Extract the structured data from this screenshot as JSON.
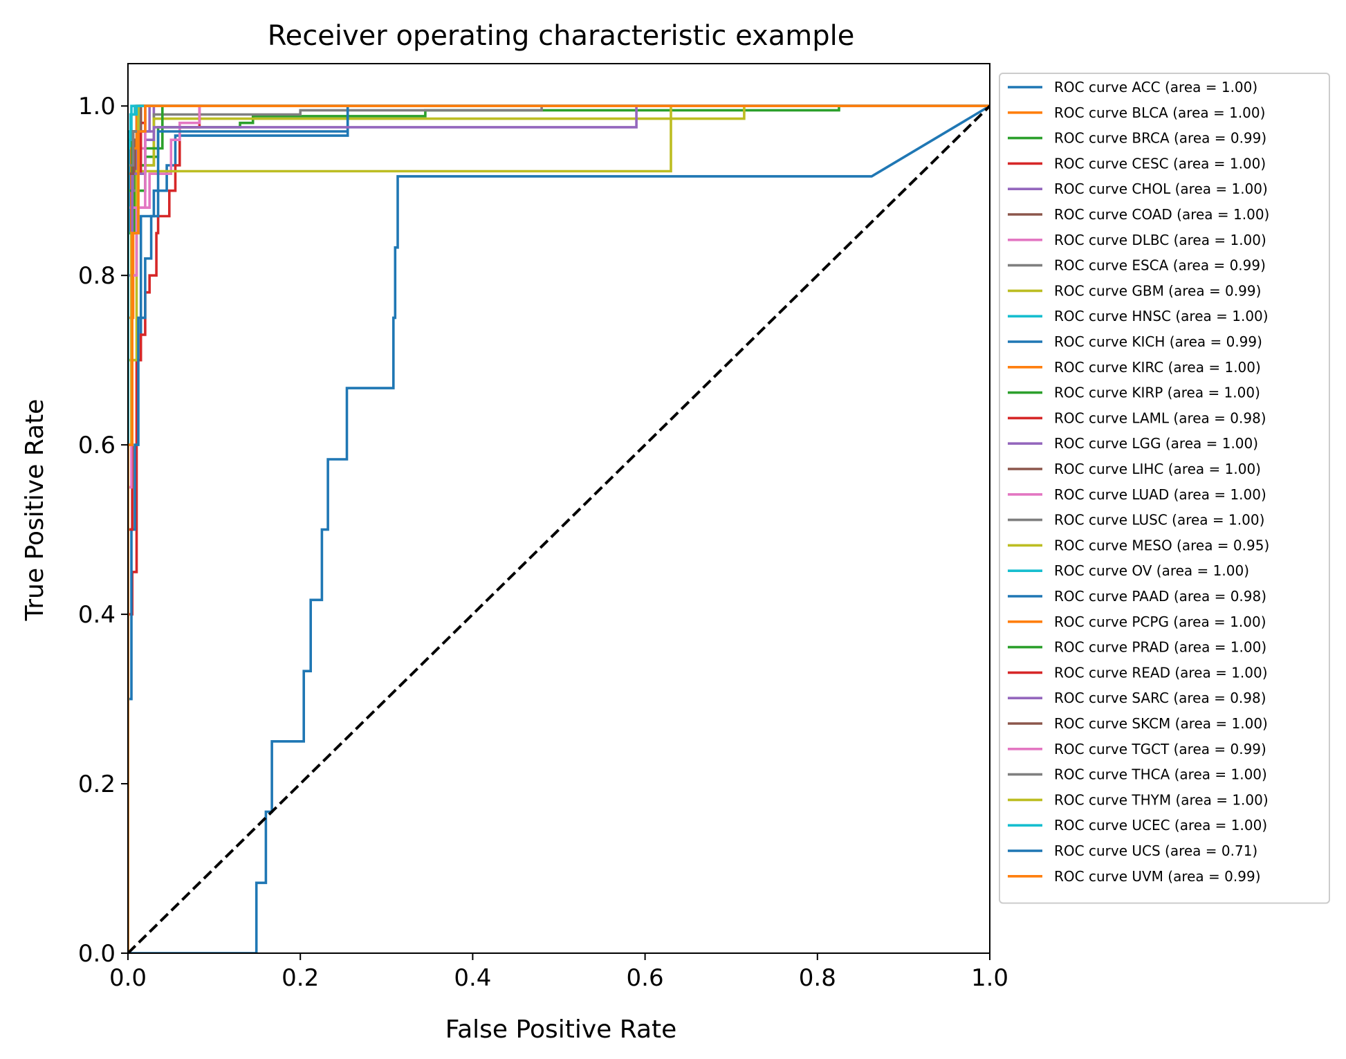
{
  "chart_data": {
    "type": "line",
    "title": "Receiver operating characteristic example",
    "xlabel": "False Positive Rate",
    "ylabel": "True Positive Rate",
    "xlim": [
      0.0,
      1.0
    ],
    "ylim": [
      0.0,
      1.05
    ],
    "x_ticks": [
      "0.0",
      "0.2",
      "0.4",
      "0.6",
      "0.8",
      "1.0"
    ],
    "y_ticks": [
      "0.0",
      "0.2",
      "0.4",
      "0.6",
      "0.8",
      "1.0"
    ],
    "grid": false,
    "legend_position": "outside right",
    "reference_line": {
      "x": [
        0,
        1
      ],
      "y": [
        0,
        1
      ],
      "color": "#000000",
      "style": "dashed"
    },
    "series": [
      {
        "name": "ROC curve ACC (area = 1.00)",
        "color": "#1f77b4",
        "x": [
          0,
          0,
          0.003,
          0.003,
          0.01,
          0.01,
          1
        ],
        "y": [
          0,
          0.85,
          0.85,
          0.97,
          0.97,
          1,
          1
        ]
      },
      {
        "name": "ROC curve BLCA (area = 1.00)",
        "color": "#ff7f0e",
        "x": [
          0,
          0,
          0.005,
          0.005,
          0.012,
          0.012,
          1
        ],
        "y": [
          0,
          0.7,
          0.7,
          0.9,
          0.9,
          1,
          1
        ]
      },
      {
        "name": "ROC curve BRCA (area = 0.99)",
        "color": "#2ca02c",
        "x": [
          0,
          0,
          0.01,
          0.01,
          0.02,
          0.02,
          0.035,
          0.035,
          0.13,
          0.13,
          0.145,
          0.145,
          0.345,
          0.345,
          0.825,
          0.825,
          1
        ],
        "y": [
          0,
          0.8,
          0.8,
          0.9,
          0.9,
          0.94,
          0.94,
          0.975,
          0.975,
          0.98,
          0.98,
          0.988,
          0.988,
          0.995,
          0.995,
          1,
          1
        ]
      },
      {
        "name": "ROC curve CESC (area = 1.00)",
        "color": "#d62728",
        "x": [
          0,
          0,
          0.004,
          0.004,
          0.012,
          0.012,
          0.02,
          0.02,
          1
        ],
        "y": [
          0,
          0.85,
          0.85,
          0.95,
          0.95,
          0.98,
          0.98,
          1,
          1
        ]
      },
      {
        "name": "ROC curve CHOL (area = 1.00)",
        "color": "#9467bd",
        "x": [
          0,
          0,
          0.005,
          0.005,
          0.03,
          0.03,
          1
        ],
        "y": [
          0,
          0.88,
          0.88,
          0.97,
          0.97,
          1,
          1
        ]
      },
      {
        "name": "ROC curve COAD (area = 1.00)",
        "color": "#8c564b",
        "x": [
          0,
          0,
          0.006,
          0.006,
          0.012,
          0.012,
          1
        ],
        "y": [
          0,
          0.9,
          0.9,
          0.96,
          0.96,
          1,
          1
        ]
      },
      {
        "name": "ROC curve DLBC (area = 1.00)",
        "color": "#e377c2",
        "x": [
          0,
          0,
          0.004,
          0.004,
          0.01,
          0.01,
          0.02,
          0.02,
          1
        ],
        "y": [
          0,
          0.6,
          0.6,
          0.85,
          0.85,
          0.95,
          0.95,
          1,
          1
        ]
      },
      {
        "name": "ROC curve ESCA (area = 0.99)",
        "color": "#7f7f7f",
        "x": [
          0,
          0,
          0.01,
          0.01,
          0.03,
          0.03,
          0.2,
          0.2,
          0.48,
          0.48,
          1
        ],
        "y": [
          0,
          0.85,
          0.85,
          0.93,
          0.93,
          0.99,
          0.99,
          0.995,
          0.995,
          1,
          1
        ]
      },
      {
        "name": "ROC curve GBM (area = 0.99)",
        "color": "#bcbd22",
        "x": [
          0,
          0,
          0.01,
          0.01,
          0.03,
          0.03,
          0.715,
          0.715,
          1
        ],
        "y": [
          0,
          0.8,
          0.8,
          0.93,
          0.93,
          0.985,
          0.985,
          1,
          1
        ]
      },
      {
        "name": "ROC curve HNSC (area = 1.00)",
        "color": "#17becf",
        "x": [
          0,
          0,
          0.003,
          0.003,
          0.008,
          0.008,
          1
        ],
        "y": [
          0,
          0.95,
          0.95,
          0.99,
          0.99,
          1,
          1
        ]
      },
      {
        "name": "ROC curve KICH (area = 0.99)",
        "color": "#1f77b4",
        "x": [
          0,
          0,
          0.005,
          0.005,
          0.015,
          0.015,
          0.03,
          0.03,
          0.045,
          0.045,
          0.055,
          0.055,
          0.255,
          0.255,
          1
        ],
        "y": [
          0,
          0.5,
          0.5,
          0.7,
          0.7,
          0.87,
          0.87,
          0.9,
          0.9,
          0.93,
          0.93,
          0.965,
          0.965,
          1,
          1
        ]
      },
      {
        "name": "ROC curve KIRC (area = 1.00)",
        "color": "#ff7f0e",
        "x": [
          0,
          0,
          0.006,
          0.006,
          0.015,
          0.015,
          1
        ],
        "y": [
          0,
          0.75,
          0.75,
          0.92,
          0.92,
          1,
          1
        ]
      },
      {
        "name": "ROC curve KIRP (area = 1.00)",
        "color": "#2ca02c",
        "x": [
          0,
          0,
          0.008,
          0.008,
          0.02,
          0.02,
          0.04,
          0.04,
          1
        ],
        "y": [
          0,
          0.85,
          0.85,
          0.93,
          0.93,
          0.95,
          0.95,
          1,
          1
        ]
      },
      {
        "name": "ROC curve LAML (area = 0.98)",
        "color": "#d62728",
        "x": [
          0,
          0,
          0.005,
          0.005,
          0.01,
          0.01,
          0.015,
          0.015,
          0.02,
          0.02,
          0.025,
          0.025,
          0.033,
          0.033,
          0.035,
          0.035,
          0.048,
          0.048,
          0.055,
          0.055,
          0.06,
          0.06,
          0.083,
          0.083,
          1
        ],
        "y": [
          0,
          0.4,
          0.4,
          0.45,
          0.45,
          0.7,
          0.7,
          0.73,
          0.73,
          0.78,
          0.78,
          0.8,
          0.8,
          0.85,
          0.85,
          0.87,
          0.87,
          0.9,
          0.9,
          0.93,
          0.93,
          0.975,
          0.975,
          1,
          1
        ]
      },
      {
        "name": "ROC curve LGG (area = 1.00)",
        "color": "#9467bd",
        "x": [
          0,
          0,
          0.01,
          0.01,
          0.025,
          0.025,
          1
        ],
        "y": [
          0,
          0.9,
          0.9,
          0.97,
          0.97,
          1,
          1
        ]
      },
      {
        "name": "ROC curve LIHC (area = 1.00)",
        "color": "#8c564b",
        "x": [
          0,
          0,
          0.008,
          0.008,
          0.015,
          0.015,
          1
        ],
        "y": [
          0,
          0.92,
          0.92,
          0.96,
          0.96,
          1,
          1
        ]
      },
      {
        "name": "ROC curve LUAD (area = 1.00)",
        "color": "#e377c2",
        "x": [
          0,
          0,
          0.005,
          0.005,
          0.025,
          0.025,
          0.05,
          0.05,
          0.06,
          0.06,
          0.083,
          0.083,
          1
        ],
        "y": [
          0,
          0.55,
          0.55,
          0.88,
          0.88,
          0.92,
          0.92,
          0.96,
          0.96,
          0.98,
          0.98,
          1,
          1
        ]
      },
      {
        "name": "ROC curve LUSC (area = 1.00)",
        "color": "#7f7f7f",
        "x": [
          0,
          0,
          0.006,
          0.006,
          0.02,
          0.02,
          1
        ],
        "y": [
          0,
          0.9,
          0.9,
          0.97,
          0.97,
          1,
          1
        ]
      },
      {
        "name": "ROC curve MESO (area = 0.95)",
        "color": "#bcbd22",
        "x": [
          0,
          0,
          0.01,
          0.01,
          0.63,
          0.63,
          1
        ],
        "y": [
          0,
          0.7,
          0.7,
          0.923,
          0.923,
          1,
          1
        ]
      },
      {
        "name": "ROC curve OV (area = 1.00)",
        "color": "#17becf",
        "x": [
          0,
          0,
          0.004,
          0.004,
          0.052,
          0.052,
          1
        ],
        "y": [
          0,
          0.97,
          0.97,
          1,
          1,
          1,
          1
        ]
      },
      {
        "name": "ROC curve PAAD (area = 0.98)",
        "color": "#1f77b4",
        "x": [
          0,
          0,
          0.004,
          0.004,
          0.008,
          0.008,
          0.012,
          0.012,
          0.02,
          0.02,
          0.027,
          0.027,
          0.035,
          0.035,
          0.255,
          0.255,
          1
        ],
        "y": [
          0,
          0.3,
          0.3,
          0.5,
          0.5,
          0.6,
          0.6,
          0.75,
          0.75,
          0.82,
          0.82,
          0.87,
          0.87,
          0.97,
          0.97,
          1,
          1
        ]
      },
      {
        "name": "ROC curve PCPG (area = 1.00)",
        "color": "#ff7f0e",
        "x": [
          0,
          0,
          0.004,
          0.004,
          0.01,
          0.01,
          1
        ],
        "y": [
          0,
          0.6,
          0.6,
          0.95,
          0.95,
          1,
          1
        ]
      },
      {
        "name": "ROC curve PRAD (area = 1.00)",
        "color": "#2ca02c",
        "x": [
          0,
          0,
          0.005,
          0.005,
          0.015,
          0.015,
          1
        ],
        "y": [
          0,
          0.9,
          0.9,
          0.97,
          0.97,
          1,
          1
        ]
      },
      {
        "name": "ROC curve READ (area = 1.00)",
        "color": "#d62728",
        "x": [
          0,
          0,
          0.005,
          0.005,
          0.015,
          0.015,
          1
        ],
        "y": [
          0,
          0.5,
          0.5,
          0.92,
          0.92,
          1,
          1
        ]
      },
      {
        "name": "ROC curve SARC (area = 0.98)",
        "color": "#9467bd",
        "x": [
          0,
          0,
          0.005,
          0.005,
          0.02,
          0.02,
          0.03,
          0.03,
          0.59,
          0.59,
          1
        ],
        "y": [
          0,
          0.8,
          0.8,
          0.92,
          0.92,
          0.96,
          0.96,
          0.975,
          0.975,
          1,
          1
        ]
      },
      {
        "name": "ROC curve SKCM (area = 1.00)",
        "color": "#8c564b",
        "x": [
          0,
          0,
          0.006,
          0.006,
          0.015,
          0.015,
          1
        ],
        "y": [
          0,
          0.92,
          0.92,
          0.97,
          0.97,
          1,
          1
        ]
      },
      {
        "name": "ROC curve TGCT (area = 0.99)",
        "color": "#e377c2",
        "x": [
          0,
          0,
          0.004,
          0.004,
          0.01,
          0.01,
          0.02,
          0.02,
          1
        ],
        "y": [
          0,
          0.55,
          0.55,
          0.8,
          0.8,
          0.88,
          0.88,
          1,
          1
        ]
      },
      {
        "name": "ROC curve THCA (area = 1.00)",
        "color": "#7f7f7f",
        "x": [
          0,
          0,
          0.006,
          0.006,
          0.013,
          0.013,
          1
        ],
        "y": [
          0,
          0.93,
          0.93,
          0.97,
          0.97,
          1,
          1
        ]
      },
      {
        "name": "ROC curve THYM (area = 1.00)",
        "color": "#bcbd22",
        "x": [
          0,
          0,
          0.004,
          0.004,
          0.012,
          0.012,
          1
        ],
        "y": [
          0,
          0.6,
          0.6,
          0.85,
          0.85,
          1,
          1
        ]
      },
      {
        "name": "ROC curve UCEC (area = 1.00)",
        "color": "#17becf",
        "x": [
          0,
          0,
          0.003,
          0.003,
          0.01,
          0.01,
          1
        ],
        "y": [
          0,
          0.96,
          0.96,
          0.99,
          0.99,
          1,
          1
        ]
      },
      {
        "name": "ROC curve UCS (area = 0.71)",
        "color": "#1f77b4",
        "x": [
          0,
          0.149,
          0.149,
          0.16,
          0.16,
          0.167,
          0.167,
          0.204,
          0.204,
          0.212,
          0.212,
          0.225,
          0.225,
          0.232,
          0.232,
          0.254,
          0.254,
          0.308,
          0.308,
          0.31,
          0.31,
          0.313,
          0.313,
          0.863,
          1
        ],
        "y": [
          0,
          0,
          0.083,
          0.083,
          0.167,
          0.167,
          0.25,
          0.25,
          0.333,
          0.333,
          0.417,
          0.417,
          0.5,
          0.5,
          0.583,
          0.583,
          0.667,
          0.667,
          0.75,
          0.75,
          0.833,
          0.833,
          0.917,
          0.917,
          1
        ]
      },
      {
        "name": "ROC curve UVM (area = 0.99)",
        "color": "#ff7f0e",
        "x": [
          0,
          0,
          0.005,
          0.005,
          0.012,
          0.012,
          0.02,
          0.02,
          1
        ],
        "y": [
          0,
          0.6,
          0.6,
          0.85,
          0.85,
          0.97,
          0.97,
          1,
          1
        ]
      }
    ]
  }
}
